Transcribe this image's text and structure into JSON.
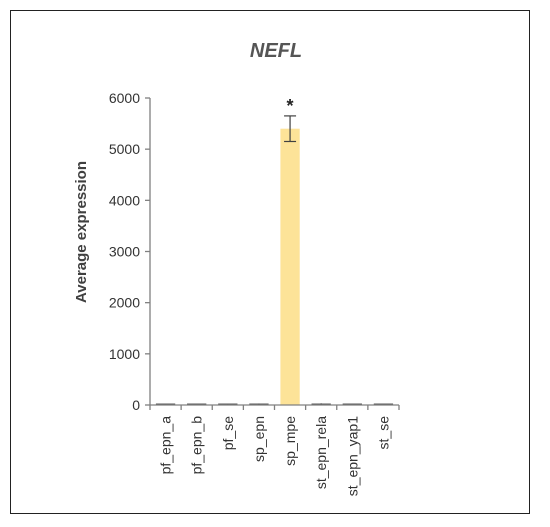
{
  "chart_data": {
    "type": "bar",
    "title": "NEFL",
    "ylabel": "Average expression",
    "xlabel": "",
    "ylim": [
      0,
      6000
    ],
    "yticks": [
      0,
      1000,
      2000,
      3000,
      4000,
      5000,
      6000
    ],
    "categories": [
      "pf_epn_a",
      "pf_epn_b",
      "pf_se",
      "sp_epn",
      "sp_mpe",
      "st_epn_rela",
      "st_epn_yap1",
      "st_se"
    ],
    "values": [
      8,
      5,
      10,
      18,
      5400,
      22,
      6,
      7
    ],
    "errors": [
      3,
      2,
      4,
      8,
      250,
      10,
      3,
      3
    ],
    "annotations": [
      {
        "category": "sp_mpe",
        "text": "*"
      }
    ],
    "grid": false,
    "legend": "none",
    "colors": {
      "bar": "#fde398",
      "highlight_bar": "#fde398",
      "low_bar": "#595959",
      "axis": "#808080",
      "text": "#333333"
    }
  }
}
